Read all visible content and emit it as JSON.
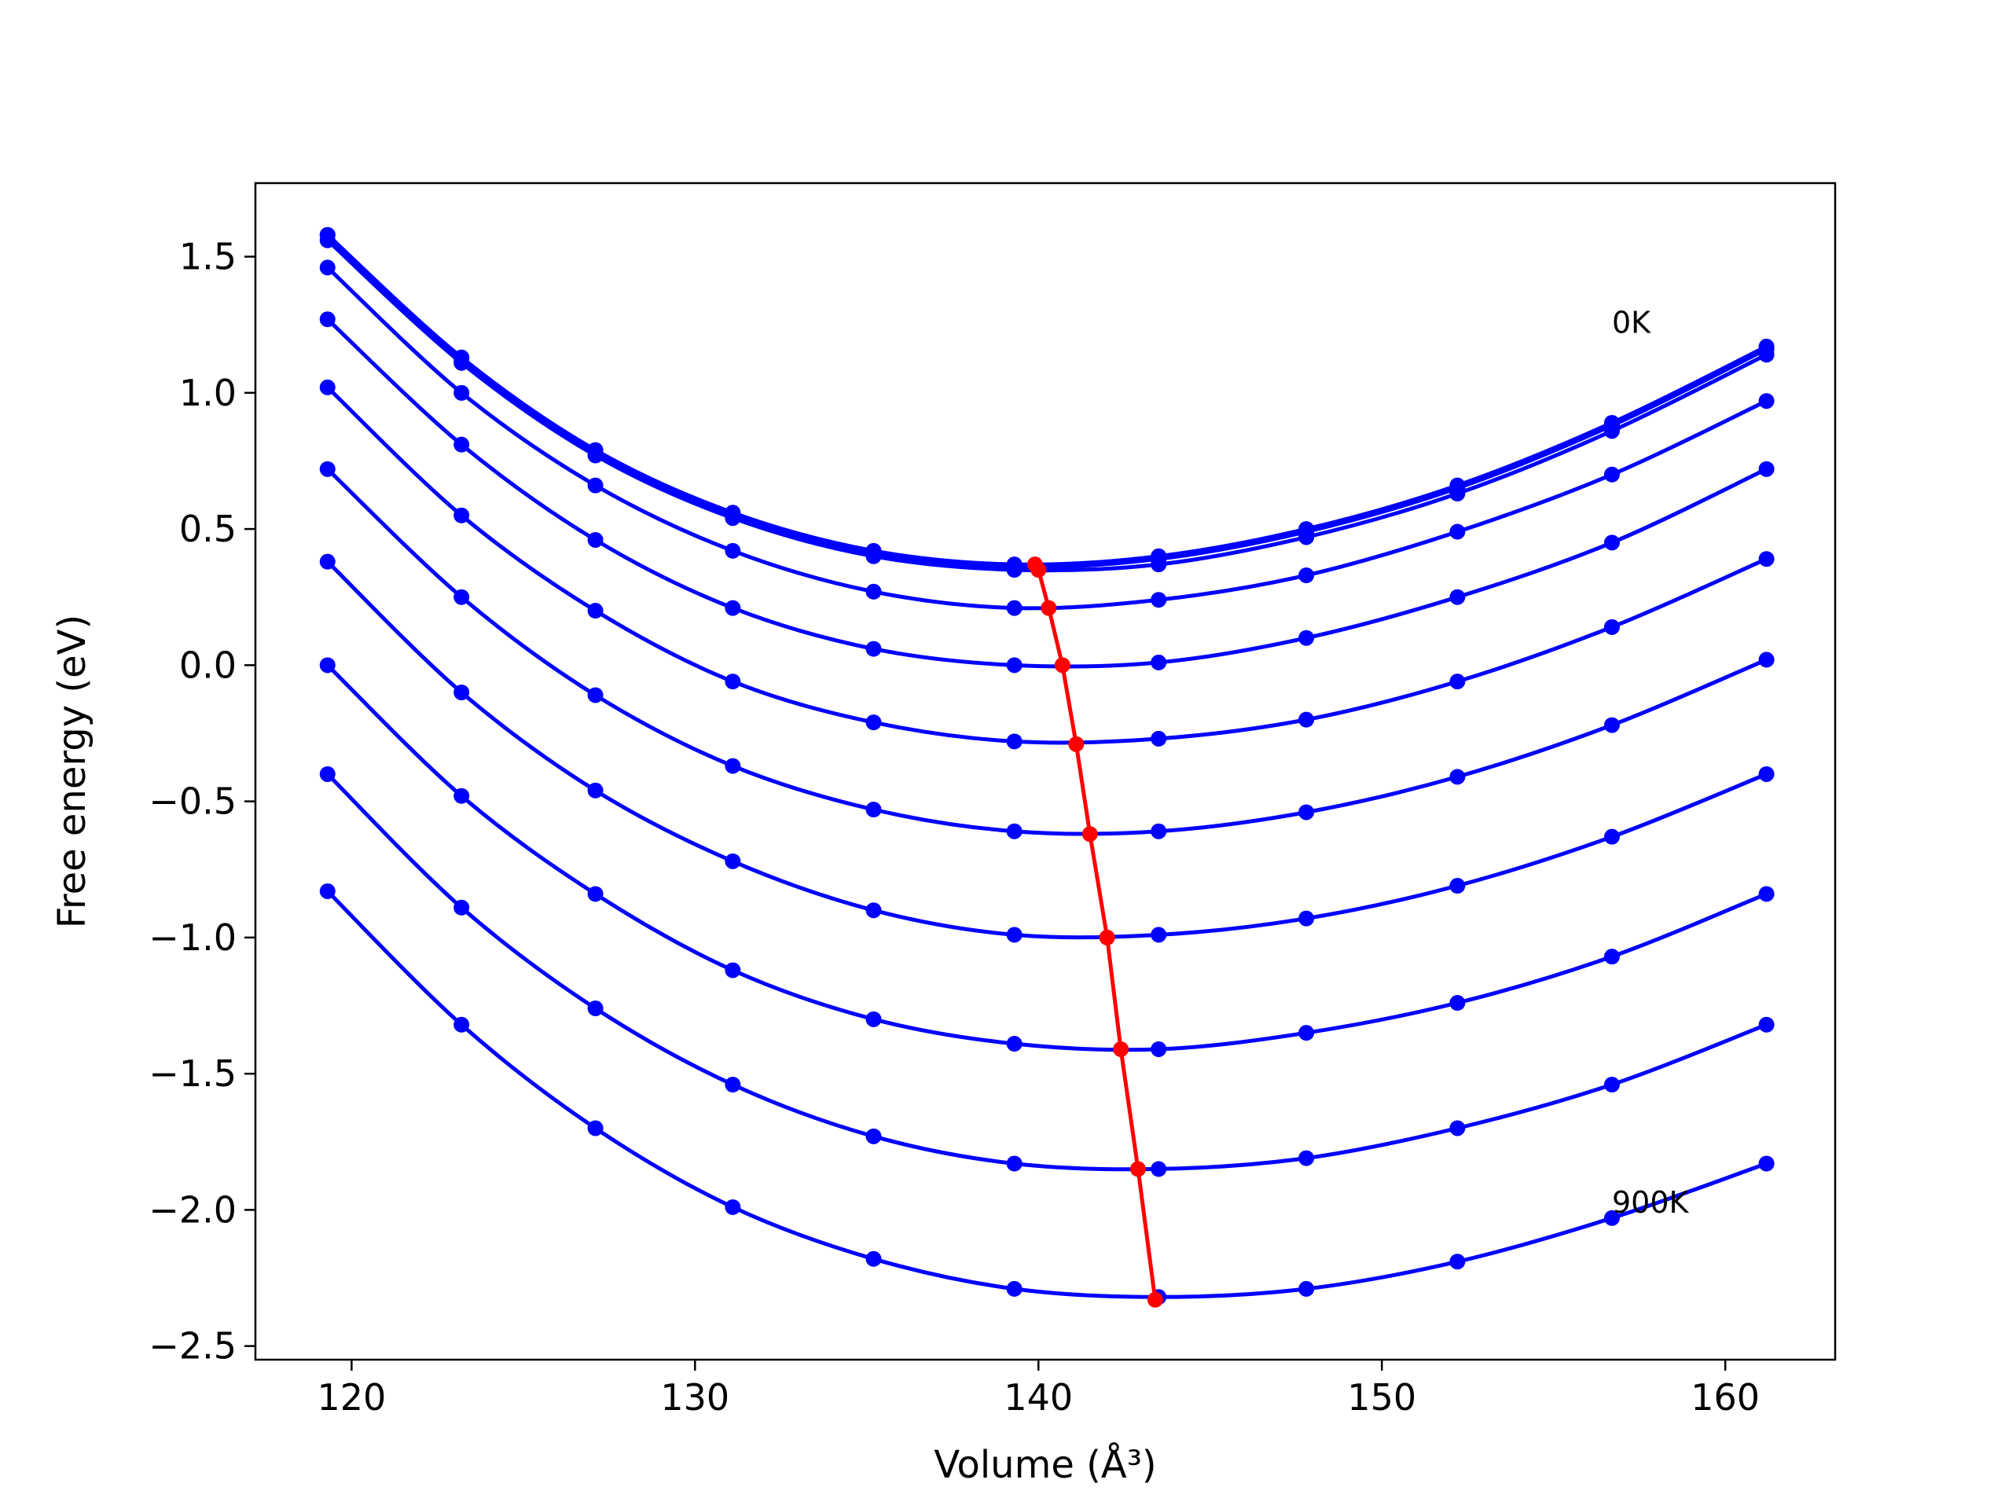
{
  "chart_data": {
    "type": "line",
    "xlabel": "Volume (Å³)",
    "ylabel": "Free energy (eV)",
    "xlim": [
      117.2,
      163.2
    ],
    "ylim": [
      -2.55,
      1.77
    ],
    "x_ticks": [
      120,
      130,
      140,
      150,
      160
    ],
    "x_tick_labels": [
      "120",
      "130",
      "140",
      "150",
      "160"
    ],
    "y_ticks": [
      1.5,
      1.0,
      0.5,
      0.0,
      -0.5,
      -1.0,
      -1.5,
      -2.0,
      -2.5
    ],
    "y_tick_labels": [
      "1.5",
      "1.0",
      "0.5",
      "0.0",
      "−0.5",
      "−1.0",
      "−1.5",
      "−2.0",
      "−2.5"
    ],
    "grid": false,
    "legend": "none",
    "x": [
      119.3,
      123.2,
      127.1,
      131.1,
      135.2,
      139.3,
      143.5,
      147.8,
      152.2,
      156.7,
      161.2
    ],
    "series": [
      {
        "color": "#0000ff",
        "values": [
          1.58,
          1.13,
          0.79,
          0.56,
          0.42,
          0.37,
          0.4,
          0.5,
          0.66,
          0.89,
          1.17
        ]
      },
      {
        "color": "#0000ff",
        "values": [
          1.58,
          1.12,
          0.78,
          0.55,
          0.41,
          0.36,
          0.39,
          0.49,
          0.65,
          0.88,
          1.16
        ]
      },
      {
        "color": "#0000ff",
        "values": [
          1.56,
          1.11,
          0.77,
          0.54,
          0.4,
          0.35,
          0.37,
          0.47,
          0.63,
          0.86,
          1.14
        ]
      },
      {
        "color": "#0000ff",
        "values": [
          1.46,
          1.0,
          0.66,
          0.42,
          0.27,
          0.21,
          0.24,
          0.33,
          0.49,
          0.7,
          0.97
        ]
      },
      {
        "color": "#0000ff",
        "values": [
          1.27,
          0.81,
          0.46,
          0.21,
          0.06,
          0.0,
          0.01,
          0.1,
          0.25,
          0.45,
          0.72
        ]
      },
      {
        "color": "#0000ff",
        "values": [
          1.02,
          0.55,
          0.2,
          -0.06,
          -0.21,
          -0.28,
          -0.27,
          -0.2,
          -0.06,
          0.14,
          0.39
        ]
      },
      {
        "color": "#0000ff",
        "values": [
          0.72,
          0.25,
          -0.11,
          -0.37,
          -0.53,
          -0.61,
          -0.61,
          -0.54,
          -0.41,
          -0.22,
          0.02
        ]
      },
      {
        "color": "#0000ff",
        "values": [
          0.38,
          -0.1,
          -0.46,
          -0.72,
          -0.9,
          -0.99,
          -0.99,
          -0.93,
          -0.81,
          -0.63,
          -0.4
        ]
      },
      {
        "color": "#0000ff",
        "values": [
          0.0,
          -0.48,
          -0.84,
          -1.12,
          -1.3,
          -1.39,
          -1.41,
          -1.35,
          -1.24,
          -1.07,
          -0.84
        ]
      },
      {
        "color": "#0000ff",
        "values": [
          -0.4,
          -0.89,
          -1.26,
          -1.54,
          -1.73,
          -1.83,
          -1.85,
          -1.81,
          -1.7,
          -1.54,
          -1.32
        ]
      },
      {
        "color": "#0000ff",
        "values": [
          -0.83,
          -1.32,
          -1.7,
          -1.99,
          -2.18,
          -2.29,
          -2.32,
          -2.29,
          -2.19,
          -2.03,
          -1.83
        ]
      }
    ],
    "minimum_curve": {
      "color": "#ff0000",
      "points": [
        {
          "x": 139.9,
          "y": 0.37
        },
        {
          "x": 140.0,
          "y": 0.35
        },
        {
          "x": 140.3,
          "y": 0.21
        },
        {
          "x": 140.7,
          "y": 0.0
        },
        {
          "x": 141.1,
          "y": -0.29
        },
        {
          "x": 141.5,
          "y": -0.62
        },
        {
          "x": 142.0,
          "y": -1.0
        },
        {
          "x": 142.4,
          "y": -1.41
        },
        {
          "x": 142.9,
          "y": -1.85
        },
        {
          "x": 143.4,
          "y": -2.33
        }
      ]
    },
    "annotations": [
      {
        "text": "0K",
        "x": 156.7,
        "y": 1.22
      },
      {
        "text": "900K",
        "x": 156.7,
        "y": -2.01
      }
    ]
  }
}
